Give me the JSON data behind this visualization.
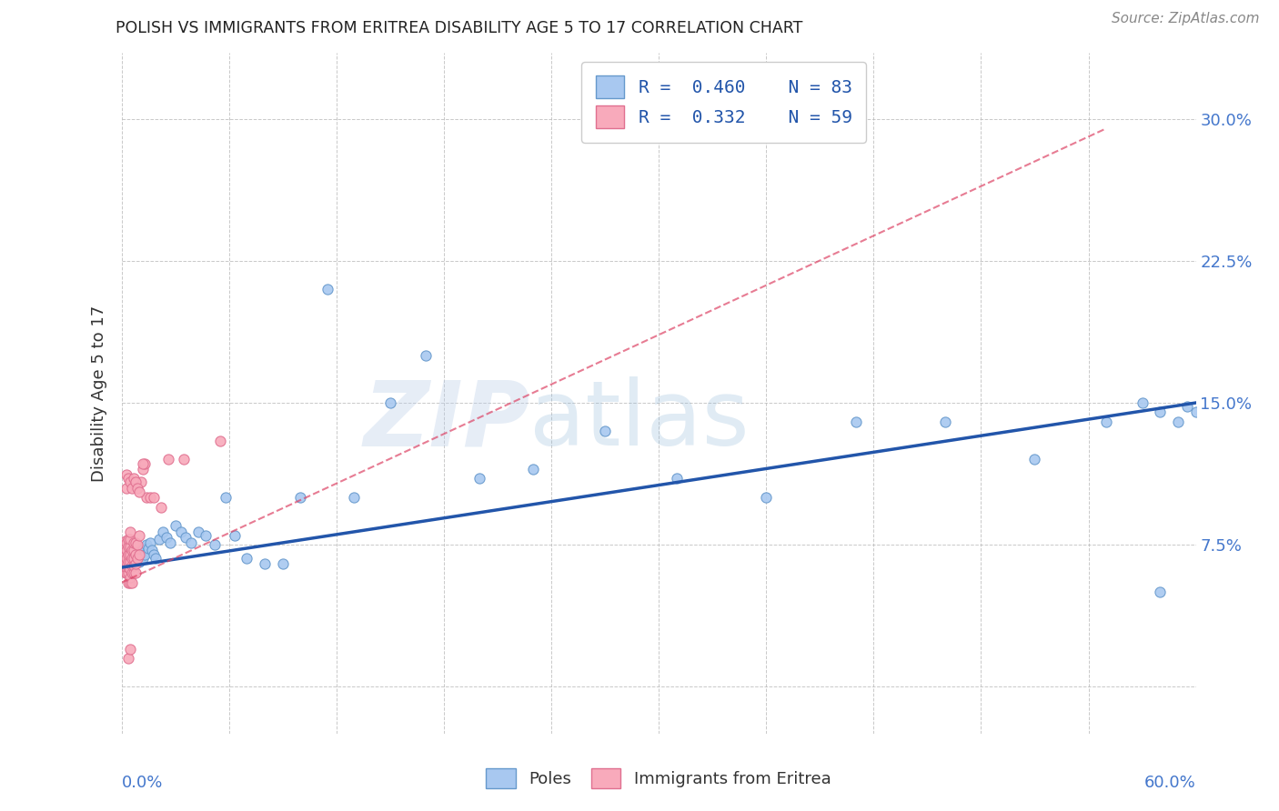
{
  "title": "POLISH VS IMMIGRANTS FROM ERITREA DISABILITY AGE 5 TO 17 CORRELATION CHART",
  "source": "Source: ZipAtlas.com",
  "ylabel": "Disability Age 5 to 17",
  "xlim": [
    0.0,
    0.6
  ],
  "ylim": [
    -0.025,
    0.335
  ],
  "yticks": [
    0.0,
    0.075,
    0.15,
    0.225,
    0.3
  ],
  "ytick_labels": [
    "",
    "7.5%",
    "15.0%",
    "22.5%",
    "30.0%"
  ],
  "xtick_labels": [
    "0.0%",
    "",
    "",
    "",
    "",
    "",
    "",
    "",
    "",
    "",
    "60.0%"
  ],
  "poles_color": "#a8c8f0",
  "eritrea_color": "#f8aabb",
  "poles_edge": "#6699cc",
  "eritrea_edge": "#e07090",
  "trend_poles_color": "#2255aa",
  "trend_eritrea_color": "#dd4466",
  "legend_label1": "R =  0.460    N = 83",
  "legend_label2": "R =  0.332    N = 59",
  "watermark_zip": "ZIP",
  "watermark_atlas": "atlas",
  "poles_x": [
    0.001,
    0.002,
    0.002,
    0.003,
    0.003,
    0.003,
    0.003,
    0.004,
    0.004,
    0.004,
    0.004,
    0.004,
    0.005,
    0.005,
    0.005,
    0.005,
    0.005,
    0.005,
    0.006,
    0.006,
    0.006,
    0.006,
    0.006,
    0.007,
    0.007,
    0.007,
    0.007,
    0.007,
    0.008,
    0.008,
    0.008,
    0.009,
    0.009,
    0.009,
    0.01,
    0.01,
    0.011,
    0.011,
    0.012,
    0.012,
    0.013,
    0.014,
    0.015,
    0.016,
    0.017,
    0.018,
    0.019,
    0.021,
    0.023,
    0.025,
    0.027,
    0.03,
    0.033,
    0.036,
    0.039,
    0.043,
    0.047,
    0.052,
    0.058,
    0.063,
    0.07,
    0.08,
    0.09,
    0.1,
    0.115,
    0.13,
    0.15,
    0.17,
    0.2,
    0.23,
    0.27,
    0.31,
    0.36,
    0.41,
    0.46,
    0.51,
    0.55,
    0.57,
    0.58,
    0.59,
    0.6,
    0.58,
    0.595
  ],
  "poles_y": [
    0.068,
    0.073,
    0.068,
    0.068,
    0.07,
    0.072,
    0.075,
    0.068,
    0.07,
    0.072,
    0.074,
    0.076,
    0.065,
    0.068,
    0.07,
    0.072,
    0.074,
    0.076,
    0.065,
    0.068,
    0.07,
    0.072,
    0.075,
    0.066,
    0.068,
    0.07,
    0.072,
    0.075,
    0.066,
    0.068,
    0.071,
    0.066,
    0.069,
    0.072,
    0.066,
    0.07,
    0.068,
    0.072,
    0.068,
    0.073,
    0.07,
    0.075,
    0.073,
    0.076,
    0.072,
    0.07,
    0.068,
    0.078,
    0.082,
    0.079,
    0.076,
    0.085,
    0.082,
    0.079,
    0.076,
    0.082,
    0.08,
    0.075,
    0.1,
    0.08,
    0.068,
    0.065,
    0.065,
    0.1,
    0.21,
    0.1,
    0.15,
    0.175,
    0.11,
    0.115,
    0.135,
    0.11,
    0.1,
    0.14,
    0.14,
    0.12,
    0.14,
    0.15,
    0.145,
    0.14,
    0.145,
    0.05,
    0.148
  ],
  "eritrea_x": [
    0.001,
    0.001,
    0.001,
    0.001,
    0.002,
    0.002,
    0.002,
    0.002,
    0.002,
    0.002,
    0.003,
    0.003,
    0.003,
    0.003,
    0.003,
    0.003,
    0.004,
    0.004,
    0.004,
    0.004,
    0.004,
    0.004,
    0.004,
    0.005,
    0.005,
    0.005,
    0.005,
    0.005,
    0.005,
    0.005,
    0.005,
    0.006,
    0.006,
    0.006,
    0.006,
    0.006,
    0.007,
    0.007,
    0.007,
    0.007,
    0.007,
    0.008,
    0.008,
    0.008,
    0.008,
    0.009,
    0.009,
    0.01,
    0.01,
    0.011,
    0.012,
    0.013,
    0.014,
    0.016,
    0.018,
    0.022,
    0.026,
    0.035,
    0.055
  ],
  "eritrea_y": [
    0.068,
    0.07,
    0.072,
    0.075,
    0.06,
    0.065,
    0.068,
    0.07,
    0.073,
    0.077,
    0.06,
    0.063,
    0.066,
    0.068,
    0.072,
    0.076,
    0.055,
    0.06,
    0.063,
    0.066,
    0.07,
    0.074,
    0.078,
    0.055,
    0.058,
    0.062,
    0.066,
    0.07,
    0.074,
    0.078,
    0.082,
    0.055,
    0.06,
    0.064,
    0.068,
    0.072,
    0.06,
    0.064,
    0.068,
    0.072,
    0.076,
    0.06,
    0.065,
    0.07,
    0.076,
    0.068,
    0.075,
    0.07,
    0.08,
    0.108,
    0.115,
    0.118,
    0.1,
    0.1,
    0.1,
    0.095,
    0.12,
    0.12,
    0.13
  ],
  "eritrea_outliers_x": [
    0.003,
    0.003,
    0.004,
    0.005,
    0.006,
    0.007,
    0.008,
    0.009,
    0.01,
    0.012,
    0.004,
    0.005
  ],
  "eritrea_outliers_y": [
    0.105,
    0.112,
    0.11,
    0.108,
    0.105,
    0.11,
    0.108,
    0.105,
    0.103,
    0.118,
    0.015,
    0.02
  ],
  "trend_poles_x0": 0.0,
  "trend_poles_y0": 0.063,
  "trend_poles_x1": 0.6,
  "trend_poles_y1": 0.15,
  "trend_eritrea_x0": 0.0,
  "trend_eritrea_y0": 0.055,
  "trend_eritrea_x1": 0.55,
  "trend_eritrea_y1": 0.295
}
